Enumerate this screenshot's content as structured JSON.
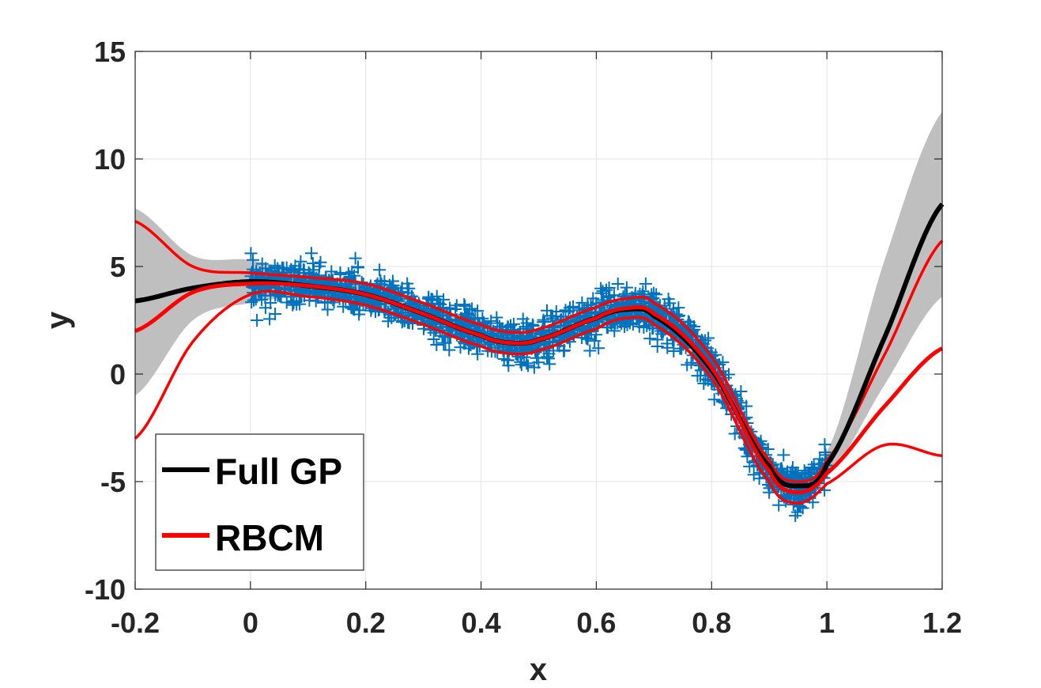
{
  "chart_data": {
    "type": "line",
    "title": "",
    "xlabel": "x",
    "ylabel": "y",
    "xlim": [
      -0.2,
      1.2
    ],
    "ylim": [
      -10,
      15
    ],
    "grid": true,
    "legend_position": "bottom-left",
    "x_ticks": [
      "-0.2",
      "0",
      "0.2",
      "0.4",
      "0.6",
      "0.8",
      "1",
      "1.2"
    ],
    "y_ticks": [
      "-10",
      "-5",
      "0",
      "5",
      "10",
      "15"
    ],
    "x": [
      -0.2,
      -0.1,
      0,
      0.1,
      0.2,
      0.3,
      0.4,
      0.45,
      0.5,
      0.6,
      0.65,
      0.7,
      0.8,
      0.9,
      0.95,
      1.0,
      1.1,
      1.2
    ],
    "series": [
      {
        "name": "Full GP",
        "color": "#000000",
        "mean": [
          3.4,
          4.0,
          4.3,
          4.1,
          3.7,
          2.8,
          1.8,
          1.45,
          1.6,
          2.6,
          3.0,
          2.7,
          0.2,
          -4.3,
          -5.2,
          -4.2,
          1.7,
          7.9
        ],
        "lower": [
          -1.0,
          2.5,
          3.3,
          3.6,
          3.2,
          2.3,
          1.3,
          0.95,
          1.1,
          2.1,
          2.5,
          2.2,
          -0.3,
          -4.8,
          -5.7,
          -4.8,
          -0.5,
          3.6
        ],
        "upper": [
          7.7,
          5.5,
          5.3,
          4.6,
          4.2,
          3.3,
          2.3,
          1.95,
          2.1,
          3.1,
          3.5,
          3.2,
          0.7,
          -3.8,
          -4.7,
          -3.6,
          5.3,
          12.2
        ]
      },
      {
        "name": "RBCM",
        "color": "#ff0000",
        "mean": [
          2.0,
          3.8,
          4.2,
          4.1,
          3.7,
          2.8,
          1.8,
          1.45,
          1.6,
          2.6,
          3.05,
          2.8,
          0.3,
          -4.5,
          -5.5,
          -4.6,
          -1.5,
          1.2
        ],
        "lower": [
          -3.0,
          1.5,
          3.7,
          3.6,
          3.2,
          2.3,
          1.3,
          0.95,
          1.1,
          2.1,
          2.6,
          2.3,
          -0.2,
          -5.0,
          -6.0,
          -5.1,
          -3.3,
          -3.8
        ],
        "upper": [
          7.1,
          5.0,
          4.7,
          4.5,
          4.2,
          3.3,
          2.3,
          1.95,
          2.1,
          3.1,
          3.5,
          3.3,
          0.8,
          -4.0,
          -5.0,
          -4.0,
          0.9,
          6.2
        ]
      }
    ],
    "observations": {
      "marker": "+",
      "color": "#0072bd",
      "x_range": [
        0,
        1
      ],
      "noise_std": 0.5,
      "count": 1500,
      "trend_x": [
        0,
        0.1,
        0.2,
        0.3,
        0.4,
        0.45,
        0.5,
        0.6,
        0.65,
        0.7,
        0.8,
        0.9,
        0.95,
        1.0
      ],
      "trend_y": [
        4.25,
        4.1,
        3.7,
        2.8,
        1.8,
        1.45,
        1.6,
        2.6,
        3.05,
        2.8,
        0.3,
        -4.4,
        -5.3,
        -4.3
      ]
    },
    "legend": [
      {
        "label": "Full GP",
        "color": "#000000"
      },
      {
        "label": "RBCM",
        "color": "#ff0000"
      }
    ]
  }
}
